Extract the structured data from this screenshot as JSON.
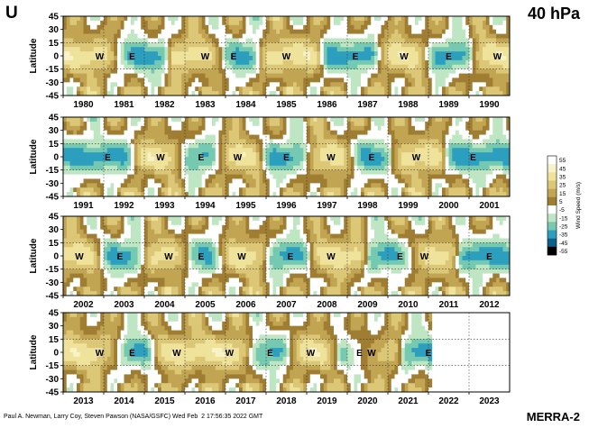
{
  "header": {
    "variable": "U",
    "level": "40 hPa"
  },
  "footer": {
    "credit": "Paul A. Newman, Larry Coy, Steven Pawson (NASA/GSFC) Wed Feb  2 17:56:35 2022 GMT",
    "dataset": "MERRA-2"
  },
  "colorbar": {
    "label": "Wind Speed (m/s)",
    "ticks": [
      "55",
      "45",
      "35",
      "25",
      "15",
      "5",
      "-5",
      "-15",
      "-25",
      "-35",
      "-45",
      "-55"
    ],
    "colors": [
      "#ffffff",
      "#f8f2c8",
      "#efe29a",
      "#dcc777",
      "#c2a552",
      "#9f7d33",
      "#ffffff",
      "#bfe6c2",
      "#74c9b0",
      "#2c9fbf",
      "#0c5f8a",
      "#000000"
    ]
  },
  "chart_data": {
    "type": "heatmap",
    "title": "U 40 hPa",
    "ylabel": "Latitude",
    "ylim": [
      -45,
      45
    ],
    "yticks": [
      "45",
      "30",
      "15",
      "0",
      "-15",
      "-30",
      "-45"
    ],
    "value_units": "m/s",
    "value_range": [
      -55,
      55
    ],
    "panels": [
      {
        "years": [
          "1980",
          "1981",
          "1982",
          "1983",
          "1984",
          "1985",
          "1986",
          "1987",
          "1988",
          "1989",
          "1990"
        ],
        "phase_labels": [
          {
            "label": "W",
            "year": 1980.9
          },
          {
            "label": "E",
            "year": 1981.7
          },
          {
            "label": "W",
            "year": 1983.5
          },
          {
            "label": "E",
            "year": 1984.2
          },
          {
            "label": "W",
            "year": 1985.5
          },
          {
            "label": "E",
            "year": 1987.2
          },
          {
            "label": "W",
            "year": 1988.4
          },
          {
            "label": "E",
            "year": 1989.5
          },
          {
            "label": "W",
            "year": 1990.7
          }
        ]
      },
      {
        "years": [
          "1991",
          "1992",
          "1993",
          "1994",
          "1995",
          "1996",
          "1997",
          "1998",
          "1999",
          "2000",
          "2001"
        ],
        "phase_labels": [
          {
            "label": "E",
            "year": 1992.1
          },
          {
            "label": "W",
            "year": 1993.4
          },
          {
            "label": "E",
            "year": 1994.4
          },
          {
            "label": "W",
            "year": 1995.3
          },
          {
            "label": "E",
            "year": 1996.5
          },
          {
            "label": "W",
            "year": 1997.6
          },
          {
            "label": "E",
            "year": 1998.6
          },
          {
            "label": "W",
            "year": 1999.7
          },
          {
            "label": "E",
            "year": 2001.1
          }
        ]
      },
      {
        "years": [
          "2002",
          "2003",
          "2004",
          "2005",
          "2006",
          "2007",
          "2008",
          "2009",
          "2010",
          "2011",
          "2012"
        ],
        "phase_labels": [
          {
            "label": "W",
            "year": 2002.4
          },
          {
            "label": "E",
            "year": 2003.4
          },
          {
            "label": "W",
            "year": 2004.6
          },
          {
            "label": "E",
            "year": 2005.4
          },
          {
            "label": "W",
            "year": 2006.4
          },
          {
            "label": "E",
            "year": 2007.6
          },
          {
            "label": "W",
            "year": 2008.6
          },
          {
            "label": "E",
            "year": 2010.3
          },
          {
            "label": "W",
            "year": 2010.9
          },
          {
            "label": "E",
            "year": 2012.5
          }
        ]
      },
      {
        "years": [
          "2013",
          "2014",
          "2015",
          "2016",
          "2017",
          "2018",
          "2019",
          "2020",
          "2021",
          "2022",
          "2023"
        ],
        "data_end_year": 2022.1,
        "phase_labels": [
          {
            "label": "W",
            "year": 2013.9
          },
          {
            "label": "E",
            "year": 2014.7
          },
          {
            "label": "W",
            "year": 2015.8
          },
          {
            "label": "W",
            "year": 2017.1
          },
          {
            "label": "E",
            "year": 2018.1
          },
          {
            "label": "W",
            "year": 2019.1
          },
          {
            "label": "E",
            "year": 2020.3
          },
          {
            "label": "W",
            "year": 2020.6
          },
          {
            "label": "E",
            "year": 2022.0
          }
        ]
      }
    ]
  }
}
